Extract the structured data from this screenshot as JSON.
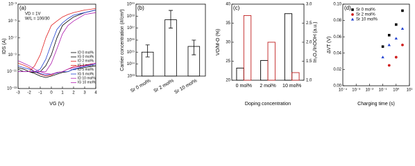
{
  "chart_data": [
    {
      "type": "line",
      "panel_label": "(a)",
      "xlabel": "VG (V)",
      "ylabel": "IDS (A)",
      "log_y": true,
      "annotations": [
        "VD = 1V",
        "W/L = 100/30"
      ],
      "x": [
        -3,
        -2.5,
        -2,
        -1.5,
        -1,
        -0.5,
        0,
        0.5,
        1,
        1.5,
        2,
        3,
        4
      ],
      "xlim": [
        -3,
        4
      ],
      "xticks": [
        -3,
        -2,
        -1,
        0,
        1,
        2,
        3,
        4
      ],
      "ylim": [
        1e-13,
        0.001
      ],
      "yticks": [
        {
          "value": 1e-13,
          "label": "10⁻¹³"
        },
        {
          "value": 1e-11,
          "label": "10⁻¹¹"
        },
        {
          "value": 1e-09,
          "label": "10⁻⁹"
        },
        {
          "value": 1e-07,
          "label": "10⁻⁷"
        },
        {
          "value": 1e-05,
          "label": "10⁻⁵"
        },
        {
          "value": 0.001,
          "label": "10⁻³"
        }
      ],
      "series": [
        {
          "name": "ID 0 mol%",
          "color": "#000000",
          "values": [
            2e-11,
            1e-11,
            1e-11,
            8e-12,
            1e-11,
            5e-11,
            1e-09,
            1e-07,
            3e-06,
            1e-05,
            3e-05,
            0.0001,
            0.0002
          ]
        },
        {
          "name": "IG 0 mol%",
          "color": "#000000",
          "values": [
            3e-11,
            2e-11,
            1e-11,
            6e-12,
            3e-12,
            2e-12,
            3e-12,
            5e-12,
            8e-12,
            1e-11,
            2e-11,
            3e-11,
            5e-11
          ]
        },
        {
          "name": "ID 2 mol%",
          "color": "#e02020",
          "values": [
            1e-11,
            1e-11,
            1e-11,
            5e-11,
            1e-09,
            1e-07,
            3e-06,
            1e-05,
            3e-05,
            6e-05,
            0.0001,
            0.0002,
            0.0003
          ]
        },
        {
          "name": "IG 2 mol%",
          "color": "#e02020",
          "values": [
            1e-10,
            6e-11,
            3e-11,
            1e-11,
            5e-12,
            3e-12,
            4e-12,
            8e-12,
            1e-11,
            2e-11,
            4e-11,
            6e-11,
            1e-10
          ]
        },
        {
          "name": "ID 5 mol%",
          "color": "#2040d0",
          "values": [
            1e-11,
            1e-11,
            1e-11,
            1e-11,
            2e-11,
            3e-10,
            2e-08,
            1e-06,
            6e-06,
            2e-05,
            5e-05,
            0.0001,
            0.0002
          ]
        },
        {
          "name": "IG 5 mol%",
          "color": "#2040d0",
          "values": [
            5e-11,
            3e-11,
            2e-11,
            1e-11,
            6e-12,
            4e-12,
            5e-12,
            7e-12,
            1e-11,
            1e-11,
            2e-11,
            4e-11,
            8e-11
          ]
        },
        {
          "name": "ID 10 mol%",
          "color": "#b020b0",
          "values": [
            1e-11,
            1e-11,
            1e-11,
            1e-11,
            1e-11,
            1e-11,
            1e-10,
            5e-09,
            3e-07,
            3e-06,
            1e-05,
            6e-05,
            0.0001
          ]
        },
        {
          "name": "IG 10 mol%",
          "color": "#b020b0",
          "values": [
            2e-10,
            1e-10,
            5e-11,
            2e-11,
            1e-11,
            6e-12,
            5e-12,
            8e-12,
            1e-11,
            2e-11,
            3e-11,
            5e-11,
            1e-10
          ]
        }
      ]
    },
    {
      "type": "bar",
      "panel_label": "(b)",
      "ylabel": "Carrier concentration (#/cm³)",
      "log_y": true,
      "categories": [
        "Sr 0 mol%",
        "Sr 2 mol%",
        "Sr 10 mol%"
      ],
      "values": [
        1000000000000000.0,
        5e+17,
        3000000000000000.0
      ],
      "error_low": [
        400000000000000.0,
        1e+17,
        600000000000000.0
      ],
      "error_high": [
        4000000000000000.0,
        3e+18,
        1e+16
      ],
      "color": "#000000",
      "ylim": [
        10000000000000.0,
        1e+19
      ],
      "yticks": [
        {
          "value": 10000000000000.0,
          "label": "10¹³"
        },
        {
          "value": 100000000000000.0,
          "label": "10¹⁴"
        },
        {
          "value": 1000000000000000.0,
          "label": "10¹⁵"
        },
        {
          "value": 1e+16,
          "label": "10¹⁶"
        },
        {
          "value": 1e+17,
          "label": "10¹⁷"
        },
        {
          "value": 1e+18,
          "label": "10¹⁸"
        },
        {
          "value": 1e+19,
          "label": "10¹⁹"
        }
      ]
    },
    {
      "type": "bar",
      "panel_label": "(c)",
      "xlabel": "Doping concentration",
      "ylabel": "VO/M-O (%)",
      "y2label": "In₂O₃/InOOH (a.u.)",
      "categories": [
        "0 mol%",
        "2 mol%",
        "10 mol%"
      ],
      "ylim": [
        20,
        40
      ],
      "yticks": [
        20,
        25,
        30,
        35,
        40
      ],
      "y2lim": [
        1.0,
        3.0
      ],
      "y2ticks": [
        {
          "value": 1.0,
          "label": "1.0"
        },
        1.5,
        {
          "value": 2.0,
          "label": "2.0"
        },
        2.5,
        {
          "value": 3.0,
          "label": "3.0"
        }
      ],
      "series": [
        {
          "color": "#000000",
          "values": [
            23.2,
            25.2,
            37.5
          ]
        },
        {
          "color": "#c02020",
          "axis": "y2",
          "values": [
            2.7,
            2.0,
            1.2
          ]
        }
      ]
    },
    {
      "type": "scatter",
      "panel_label": "(d)",
      "xlabel": "Charging time (s)",
      "ylabel": "ΔVT (V)",
      "log_x": true,
      "xlim": [
        0.0001,
        10
      ],
      "xticks": [
        {
          "value": 0.0001,
          "label": "10⁻⁴"
        },
        {
          "value": 0.001,
          "label": "10⁻³"
        },
        {
          "value": 0.01,
          "label": "10⁻²"
        },
        {
          "value": 0.1,
          "label": "10⁻¹"
        },
        {
          "value": 1,
          "label": "10⁰"
        },
        {
          "value": 10,
          "label": "10¹"
        }
      ],
      "ylim": [
        0,
        0.1
      ],
      "yticks": [
        {
          "value": 0,
          "label": "0.00"
        },
        0.02,
        0.04,
        0.06,
        0.08,
        {
          "value": 0.1,
          "label": "0.10"
        }
      ],
      "series": [
        {
          "name": "Sr 0 mol%",
          "color": "#000000",
          "marker": "square",
          "x": [
            0.1,
            0.3,
            1,
            3
          ],
          "values": [
            0.048,
            0.062,
            0.075,
            0.092
          ]
        },
        {
          "name": "Sr 2 mol%",
          "color": "#d02020",
          "marker": "circle",
          "x": [
            0.3,
            1,
            3
          ],
          "values": [
            0.025,
            0.035,
            0.05
          ]
        },
        {
          "name": "Sr 10 mol%",
          "color": "#2040d0",
          "marker": "triangle",
          "x": [
            0.1,
            0.3,
            1,
            3
          ],
          "values": [
            0.035,
            0.05,
            0.058,
            0.07
          ]
        }
      ]
    }
  ]
}
